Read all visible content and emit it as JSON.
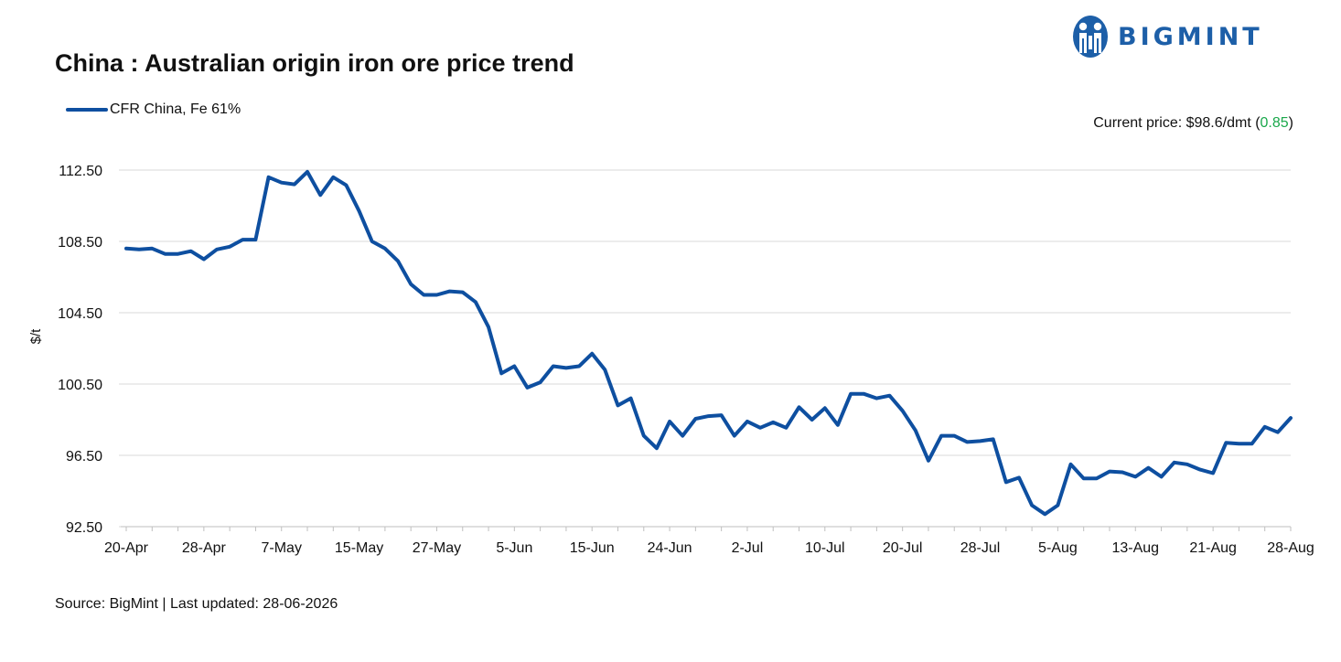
{
  "header": {
    "title": "China : Australian origin iron ore price trend",
    "brand": "BIGMINT"
  },
  "colors": {
    "line": "#0e4fa0",
    "grid": "#d9d9d9",
    "positive_change": "#1aa84b",
    "brand": "#1d5fa8"
  },
  "current_price": {
    "prefix": "Current price: $98.6/dmt (",
    "change": "0.85",
    "suffix": ")"
  },
  "footer": {
    "source": "Source: BigMint | Last updated: 28-06-2026"
  },
  "chart_data": {
    "type": "line",
    "title": "China : Australian origin iron ore price trend",
    "xlabel": "",
    "ylabel": "$/t",
    "ylim": [
      92.5,
      112.5
    ],
    "yticks": [
      92.5,
      96.5,
      100.5,
      104.5,
      108.5,
      112.5
    ],
    "ytick_labels": [
      "92.50",
      "96.50",
      "100.50",
      "104.50",
      "108.50",
      "112.50"
    ],
    "xtick_labels": [
      "20-Apr",
      "28-Apr",
      "7-May",
      "15-May",
      "27-May",
      "5-Jun",
      "15-Jun",
      "24-Jun",
      "2-Jul",
      "10-Jul",
      "20-Jul",
      "28-Jul",
      "5-Aug",
      "13-Aug",
      "21-Aug",
      "28-Aug"
    ],
    "xtick_positions": [
      0,
      6,
      12,
      18,
      24,
      30,
      36,
      42,
      48,
      54,
      60,
      66,
      72,
      78,
      84,
      90
    ],
    "legend": "top-left",
    "grid": true,
    "series": [
      {
        "name": "CFR China, Fe 61%",
        "values": [
          108.1,
          108.05,
          108.1,
          107.8,
          107.8,
          107.95,
          107.5,
          108.05,
          108.2,
          108.6,
          108.6,
          112.1,
          111.8,
          111.7,
          112.4,
          111.1,
          112.1,
          111.65,
          110.2,
          108.5,
          108.1,
          107.4,
          106.1,
          105.5,
          105.5,
          105.7,
          105.65,
          105.1,
          103.7,
          101.1,
          101.5,
          100.3,
          100.6,
          101.5,
          101.4,
          101.5,
          102.2,
          101.3,
          99.3,
          99.7,
          97.6,
          96.9,
          98.4,
          97.6,
          98.55,
          98.7,
          98.75,
          97.6,
          98.4,
          98.05,
          98.35,
          98.05,
          99.2,
          98.5,
          99.15,
          98.2,
          99.95,
          99.95,
          99.7,
          99.85,
          99.0,
          97.9,
          96.2,
          97.6,
          97.6,
          97.25,
          97.3,
          97.4,
          95.0,
          95.25,
          93.7,
          93.2,
          93.7,
          96.0,
          95.2,
          95.2,
          95.6,
          95.55,
          95.3,
          95.8,
          95.3,
          96.1,
          96.0,
          95.7,
          95.5,
          97.2,
          97.15,
          97.15,
          98.1,
          97.8,
          98.6
        ]
      }
    ]
  }
}
